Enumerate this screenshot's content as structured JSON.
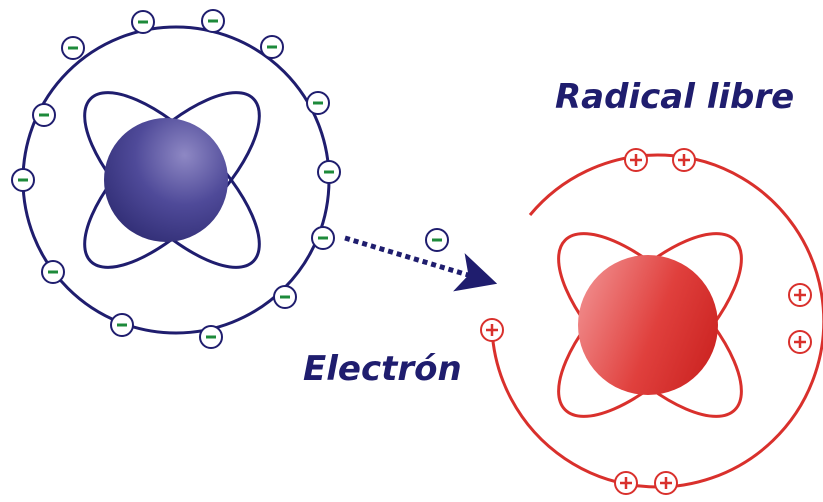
{
  "labels": {
    "radical": "Radical libre",
    "electron": "Electrón"
  }
}
